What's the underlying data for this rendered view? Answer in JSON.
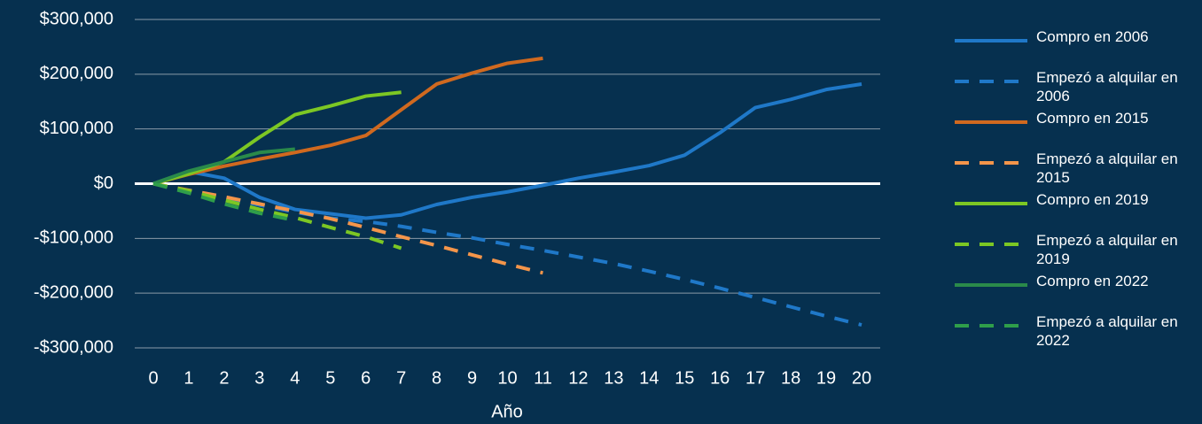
{
  "chart_data": {
    "type": "line",
    "x_label": "Año",
    "x": [
      0,
      1,
      2,
      3,
      4,
      5,
      6,
      7,
      8,
      9,
      10,
      11,
      12,
      13,
      14,
      15,
      16,
      17,
      18,
      19,
      20
    ],
    "xlim": [
      0,
      20
    ],
    "ylim": [
      -300000,
      300000
    ],
    "yticks": [
      {
        "value": -300000,
        "label": "-$300,000"
      },
      {
        "value": -200000,
        "label": "-$200,000"
      },
      {
        "value": -100000,
        "label": "-$100,000"
      },
      {
        "value": 0,
        "label": "$0"
      },
      {
        "value": 100000,
        "label": "$100,000"
      },
      {
        "value": 200000,
        "label": "$200,000"
      },
      {
        "value": 300000,
        "label": "$300,000"
      }
    ],
    "grid": true,
    "legend": "right",
    "series": [
      {
        "name": "Compro en 2006",
        "color": "#1f78c8",
        "dashed": false,
        "values": [
          0,
          22000,
          10000,
          -25000,
          -47000,
          -55000,
          -63000,
          -57000,
          -38000,
          -25000,
          -15000,
          -3000,
          10000,
          21000,
          33000,
          52000,
          93000,
          139000,
          154000,
          172000,
          182000
        ]
      },
      {
        "name": "Empezó a alquilar en 2006",
        "color": "#1f78c8",
        "dashed": true,
        "values": [
          0,
          -13000,
          -26000,
          -39000,
          -52000,
          -63000,
          -69000,
          -78000,
          -89000,
          -99000,
          -111000,
          -122000,
          -134000,
          -146000,
          -160000,
          -175000,
          -191000,
          -208000,
          -225000,
          -242000,
          -258000
        ]
      },
      {
        "name": "Compro en 2015",
        "color": "#d0691f",
        "dashed": false,
        "values": [
          0,
          17000,
          32000,
          45000,
          57000,
          70000,
          88000,
          135000,
          182000,
          202000,
          220000,
          229000,
          null,
          null,
          null,
          null,
          null,
          null,
          null,
          null,
          null
        ]
      },
      {
        "name": "Empezó a alquilar en 2015",
        "color": "#f4954a",
        "dashed": true,
        "values": [
          0,
          -12000,
          -24000,
          -37000,
          -50000,
          -64000,
          -80000,
          -97000,
          -113000,
          -130000,
          -147000,
          -163000,
          null,
          null,
          null,
          null,
          null,
          null,
          null,
          null,
          null
        ]
      },
      {
        "name": "Compro en 2019",
        "color": "#7cc724",
        "dashed": false,
        "values": [
          0,
          18000,
          40000,
          85000,
          126000,
          142000,
          160000,
          167000,
          null,
          null,
          null,
          null,
          null,
          null,
          null,
          null,
          null,
          null,
          null,
          null,
          null
        ]
      },
      {
        "name": "Empezó a alquilar en 2019",
        "color": "#7cc724",
        "dashed": true,
        "values": [
          0,
          -13000,
          -30000,
          -47000,
          -62000,
          -80000,
          -97000,
          -118000,
          null,
          null,
          null,
          null,
          null,
          null,
          null,
          null,
          null,
          null,
          null,
          null,
          null
        ]
      },
      {
        "name": "Compro en 2022",
        "color": "#2a8a4a",
        "dashed": false,
        "values": [
          0,
          23000,
          40000,
          57000,
          63000,
          null,
          null,
          null,
          null,
          null,
          null,
          null,
          null,
          null,
          null,
          null,
          null,
          null,
          null,
          null,
          null
        ]
      },
      {
        "name": "Empezó a alquilar en 2022",
        "color": "#2f9e4a",
        "dashed": true,
        "values": [
          0,
          -17000,
          -37000,
          -54000,
          -67000,
          null,
          null,
          null,
          null,
          null,
          null,
          null,
          null,
          null,
          null,
          null,
          null,
          null,
          null,
          null,
          null
        ]
      }
    ]
  }
}
